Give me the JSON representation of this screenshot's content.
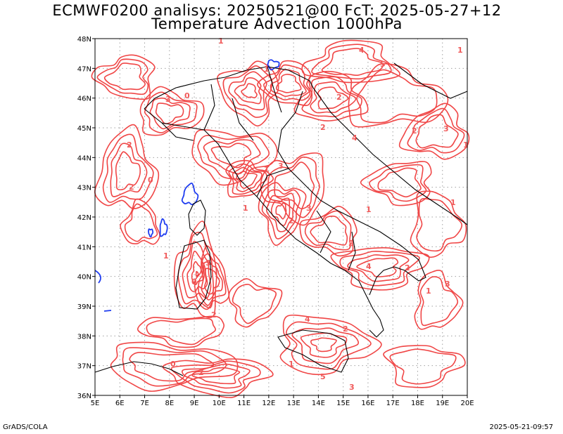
{
  "header": {
    "title_line1": "ECMWF0200 analisys: 20250521@00 FcT: 2025-05-27+12",
    "title_line2": "Temperature Advection 1000hPa"
  },
  "map": {
    "lon_labels": [
      "5E",
      "6E",
      "7E",
      "8E",
      "9E",
      "10E",
      "11E",
      "12E",
      "13E",
      "14E",
      "15E",
      "16E",
      "17E",
      "18E",
      "19E",
      "20E"
    ],
    "lat_labels": [
      "36N",
      "37N",
      "38N",
      "39N",
      "40N",
      "41N",
      "42N",
      "43N",
      "44N",
      "45N",
      "46N",
      "47N",
      "48N"
    ],
    "colors": {
      "positive_contour": "#f04646",
      "negative_contour": "#1e3cf0",
      "coastline": "#000000",
      "grid": "#a0a0a0",
      "contour_label": "#f05a5a"
    },
    "contour_labels": [
      "1",
      "2",
      "3",
      "0",
      "1",
      "2",
      "4",
      "5",
      "1",
      "2",
      "3",
      "1",
      "2",
      "4",
      "3",
      "1",
      "2",
      "0",
      "1",
      "2",
      "3",
      "1",
      "2",
      "4",
      "2",
      "1",
      "3",
      "2",
      "0",
      "1",
      "3",
      "4",
      "2",
      "1",
      "5",
      "3",
      "0",
      "2",
      "1"
    ]
  },
  "footer": {
    "left": "GrADS/COLA",
    "right": "2025-05-21-09:57"
  }
}
